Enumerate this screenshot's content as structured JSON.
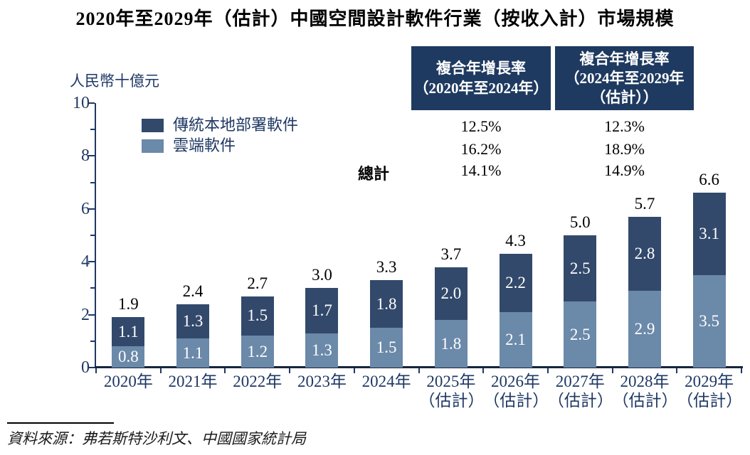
{
  "title": "2020年至2029年（估計）中國空間設計軟件行業（按收入計）市場規模",
  "y_axis_unit_label": "人民幣十億元",
  "legend": {
    "traditional_label": "傳統本地部署軟件",
    "cloud_label": "雲端軟件"
  },
  "cagr_table": {
    "col1_header": "複合年增長率\n（2020年至2024年）",
    "col2_header": "複合年增長率\n（2024年至2029年\n（估計））",
    "total_row_label": "總計",
    "rows": [
      {
        "series": "傳統本地部署軟件",
        "col1": "12.5%",
        "col2": "12.3%"
      },
      {
        "series": "雲端軟件",
        "col1": "16.2%",
        "col2": "18.9%"
      },
      {
        "series": "總計",
        "col1": "14.1%",
        "col2": "14.9%"
      }
    ]
  },
  "source": "資料來源：弗若斯特沙利文、中國國家統計局",
  "colors": {
    "traditional": "#32496B",
    "cloud": "#6B89A9",
    "header_box": "#1F3A60",
    "axis_text": "#1F3864",
    "axis_line": "#1F3864"
  },
  "chart_data": {
    "type": "bar",
    "stacked": true,
    "title": "2020年至2029年（估計）中國空間設計軟件行業（按收入計）市場規模",
    "ylabel": "人民幣十億元",
    "ylim": [
      0,
      10
    ],
    "yticks": [
      0,
      2,
      4,
      6,
      8,
      10
    ],
    "grid": false,
    "legend_position": "upper-left-inside",
    "categories": [
      {
        "year": "2020年",
        "note": ""
      },
      {
        "year": "2021年",
        "note": ""
      },
      {
        "year": "2022年",
        "note": ""
      },
      {
        "year": "2023年",
        "note": ""
      },
      {
        "year": "2024年",
        "note": ""
      },
      {
        "year": "2025年",
        "note": "（估計）"
      },
      {
        "year": "2026年",
        "note": "（估計）"
      },
      {
        "year": "2027年",
        "note": "（估計）"
      },
      {
        "year": "2028年",
        "note": "（估計）"
      },
      {
        "year": "2029年",
        "note": "（估計）"
      }
    ],
    "series": [
      {
        "name": "雲端軟件",
        "color": "#6B89A9",
        "values": [
          0.8,
          1.1,
          1.2,
          1.3,
          1.5,
          1.8,
          2.1,
          2.5,
          2.9,
          3.5
        ]
      },
      {
        "name": "傳統本地部署軟件",
        "color": "#32496B",
        "values": [
          1.1,
          1.3,
          1.5,
          1.7,
          1.8,
          2.0,
          2.2,
          2.5,
          2.8,
          3.1
        ]
      }
    ],
    "totals": [
      1.9,
      2.4,
      2.7,
      3.0,
      3.3,
      3.7,
      4.3,
      5.0,
      5.7,
      6.6
    ],
    "cagr_2020_2024": {
      "傳統本地部署軟件": "12.5%",
      "雲端軟件": "16.2%",
      "總計": "14.1%"
    },
    "cagr_2024_2029e": {
      "傳統本地部署軟件": "12.3%",
      "雲端軟件": "18.9%",
      "總計": "14.9%"
    }
  }
}
